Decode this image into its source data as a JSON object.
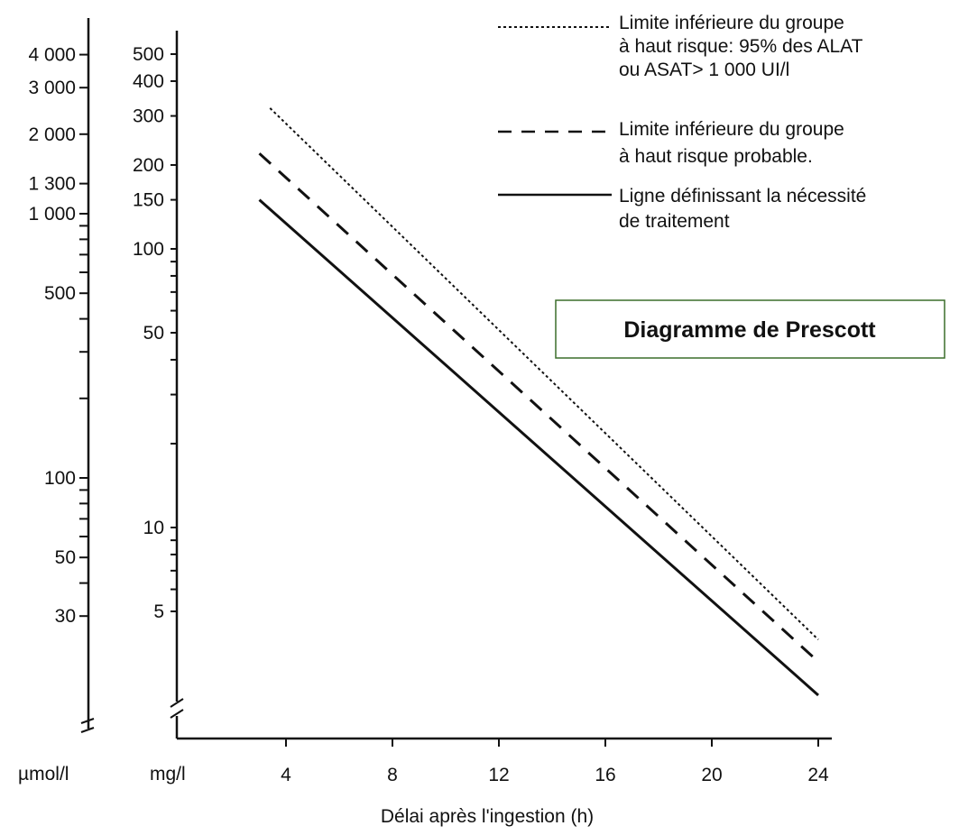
{
  "chart_data": {
    "type": "line",
    "title": "Diagramme de Prescott",
    "xlabel": "Délai après l'ingestion (h)",
    "x_ticks": [
      4,
      8,
      12,
      16,
      20,
      24
    ],
    "xlim": [
      3,
      24
    ],
    "y_scale": "log",
    "y_axes": {
      "mg": {
        "unit": "mg/l",
        "ylim": [
          3.7,
          620
        ],
        "tick_labels": [
          "500",
          "400",
          "300",
          "200",
          "150",
          "100",
          "50",
          "10",
          "5"
        ],
        "tick_values": [
          500,
          400,
          300,
          200,
          150,
          100,
          50,
          10,
          5
        ],
        "minor_ticks": [
          90,
          80,
          70,
          60,
          40,
          30,
          20,
          9,
          8,
          7,
          6
        ]
      },
      "umol": {
        "unit": "µmol/l",
        "ylim": [
          28,
          4300
        ],
        "tick_labels": [
          "4 000",
          "3 000",
          "2 000",
          "1 300",
          "1 000",
          "500",
          "100",
          "50",
          "30"
        ],
        "tick_values": [
          4000,
          3000,
          2000,
          1300,
          1000,
          500,
          100,
          50,
          30
        ],
        "minor_ticks": [
          900,
          800,
          700,
          600,
          400,
          300,
          200,
          90,
          80,
          70,
          60,
          40
        ]
      }
    },
    "series": [
      {
        "name": "Limite inférieure du groupe à haut risque: 95% des ALAT ou ASAT> 1 000 UI/l",
        "style": "dotted",
        "x": [
          3.4,
          24
        ],
        "y": [
          320,
          3.96
        ]
      },
      {
        "name": "Limite inférieure du groupe à haut risque probable.",
        "style": "dashed",
        "x": [
          3,
          24
        ],
        "y": [
          220,
          3.3
        ]
      },
      {
        "name": "Ligne définissant la nécessité de traitement",
        "style": "solid",
        "x": [
          3,
          24
        ],
        "y": [
          150,
          2.5
        ]
      }
    ],
    "legend_position": "top-right",
    "grid": false
  },
  "colors": {
    "line": "#111111",
    "title_box_border": "#3b6e2a"
  }
}
